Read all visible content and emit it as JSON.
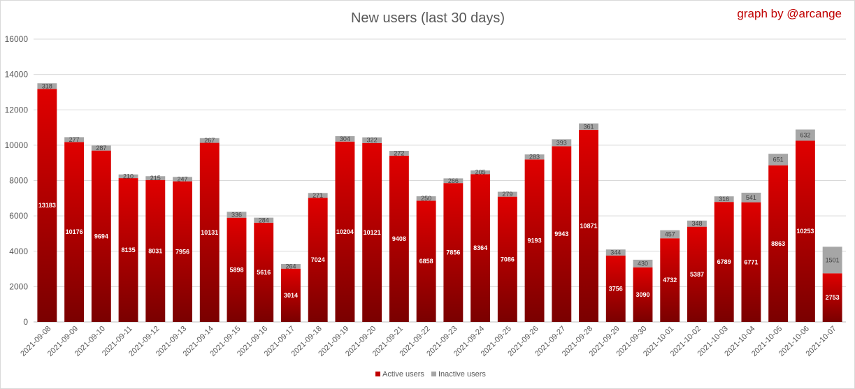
{
  "chart_data": {
    "type": "bar",
    "stacked": true,
    "title": "New users (last 30 days)",
    "credit": "graph by @arcange",
    "xlabel": "",
    "ylabel": "",
    "ylim": [
      0,
      16000
    ],
    "yticks": [
      0,
      2000,
      4000,
      6000,
      8000,
      10000,
      12000,
      14000,
      16000
    ],
    "grid": true,
    "legend_position": "bottom",
    "categories": [
      "2021-09-08",
      "2021-09-09",
      "2021-09-10",
      "2021-09-11",
      "2021-09-12",
      "2021-09-13",
      "2021-09-14",
      "2021-09-15",
      "2021-09-16",
      "2021-09-17",
      "2021-09-18",
      "2021-09-19",
      "2021-09-20",
      "2021-09-21",
      "2021-09-22",
      "2021-09-23",
      "2021-09-24",
      "2021-09-25",
      "2021-09-26",
      "2021-09-27",
      "2021-09-28",
      "2021-09-29",
      "2021-09-30",
      "2021-10-01",
      "2021-10-02",
      "2021-10-03",
      "2021-10-04",
      "2021-10-05",
      "2021-10-06",
      "2021-10-07"
    ],
    "series": [
      {
        "name": "Active users",
        "color": "#c00000",
        "values": [
          13183,
          10176,
          9694,
          8135,
          8031,
          7956,
          10131,
          5898,
          5616,
          3014,
          7024,
          10204,
          10121,
          9408,
          6858,
          7856,
          8364,
          7086,
          9193,
          9943,
          10871,
          3756,
          3090,
          4732,
          5387,
          6789,
          6771,
          8863,
          10253,
          2753
        ]
      },
      {
        "name": "Inactive users",
        "color": "#a6a6a6",
        "values": [
          318,
          277,
          287,
          210,
          215,
          247,
          267,
          336,
          284,
          264,
          271,
          304,
          322,
          272,
          250,
          266,
          205,
          279,
          283,
          393,
          361,
          344,
          430,
          457,
          348,
          316,
          541,
          651,
          632,
          1501
        ]
      }
    ]
  }
}
